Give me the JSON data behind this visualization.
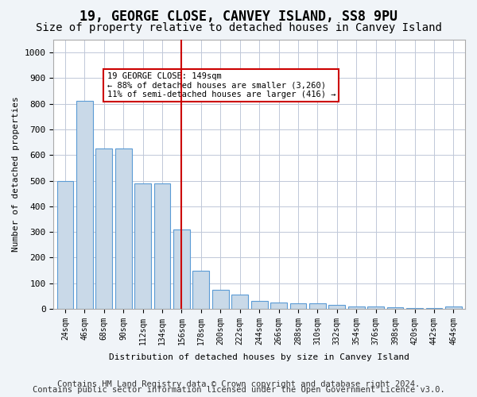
{
  "title": "19, GEORGE CLOSE, CANVEY ISLAND, SS8 9PU",
  "subtitle": "Size of property relative to detached houses in Canvey Island",
  "xlabel": "Distribution of detached houses by size in Canvey Island",
  "ylabel": "Number of detached properties",
  "categories": [
    "24sqm",
    "46sqm",
    "68sqm",
    "90sqm",
    "112sqm",
    "134sqm",
    "156sqm",
    "178sqm",
    "200sqm",
    "222sqm",
    "244sqm",
    "266sqm",
    "288sqm",
    "310sqm",
    "332sqm",
    "354sqm",
    "376sqm",
    "398sqm",
    "420sqm",
    "442sqm",
    "464sqm"
  ],
  "values": [
    500,
    810,
    625,
    625,
    490,
    490,
    310,
    150,
    75,
    55,
    30,
    25,
    20,
    20,
    15,
    10,
    8,
    5,
    3,
    2,
    10
  ],
  "bar_color": "#c9d9e8",
  "bar_edge_color": "#5b9bd5",
  "vline_x": 6,
  "vline_color": "#cc0000",
  "annotation_text": "19 GEORGE CLOSE: 149sqm\n← 88% of detached houses are smaller (3,260)\n11% of semi-detached houses are larger (416) →",
  "annotation_box_color": "#ffffff",
  "annotation_box_edge_color": "#cc0000",
  "ylim": [
    0,
    1050
  ],
  "footer1": "Contains HM Land Registry data © Crown copyright and database right 2024.",
  "footer2": "Contains public sector information licensed under the Open Government Licence v3.0.",
  "background_color": "#f0f4f8",
  "plot_background_color": "#ffffff",
  "grid_color": "#c0c8d8",
  "title_fontsize": 12,
  "subtitle_fontsize": 10,
  "footer_fontsize": 7.5
}
